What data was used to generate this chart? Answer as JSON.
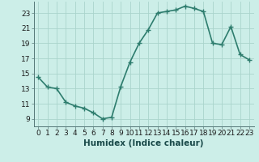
{
  "x": [
    0,
    1,
    2,
    3,
    4,
    5,
    6,
    7,
    8,
    9,
    10,
    11,
    12,
    13,
    14,
    15,
    16,
    17,
    18,
    19,
    20,
    21,
    22,
    23
  ],
  "y": [
    14.5,
    13.2,
    13.0,
    11.2,
    10.7,
    10.4,
    9.8,
    9.0,
    9.2,
    13.3,
    16.5,
    19.0,
    20.8,
    23.0,
    23.2,
    23.4,
    23.9,
    23.6,
    23.2,
    19.0,
    18.8,
    21.2,
    17.5,
    16.8
  ],
  "line_color": "#2e7d6e",
  "marker": "+",
  "marker_size": 4,
  "marker_edge_width": 1.0,
  "bg_color": "#cceee8",
  "grid_color": "#aad4cc",
  "xlabel": "Humidex (Indice chaleur)",
  "xlim": [
    -0.5,
    23.5
  ],
  "ylim": [
    8.0,
    24.5
  ],
  "yticks": [
    9,
    11,
    13,
    15,
    17,
    19,
    21,
    23
  ],
  "xticks": [
    0,
    1,
    2,
    3,
    4,
    5,
    6,
    7,
    8,
    9,
    10,
    11,
    12,
    13,
    14,
    15,
    16,
    17,
    18,
    19,
    20,
    21,
    22,
    23
  ],
  "tick_fontsize": 6.5,
  "label_fontsize": 7.5,
  "line_width": 1.2,
  "spine_color": "#557777"
}
